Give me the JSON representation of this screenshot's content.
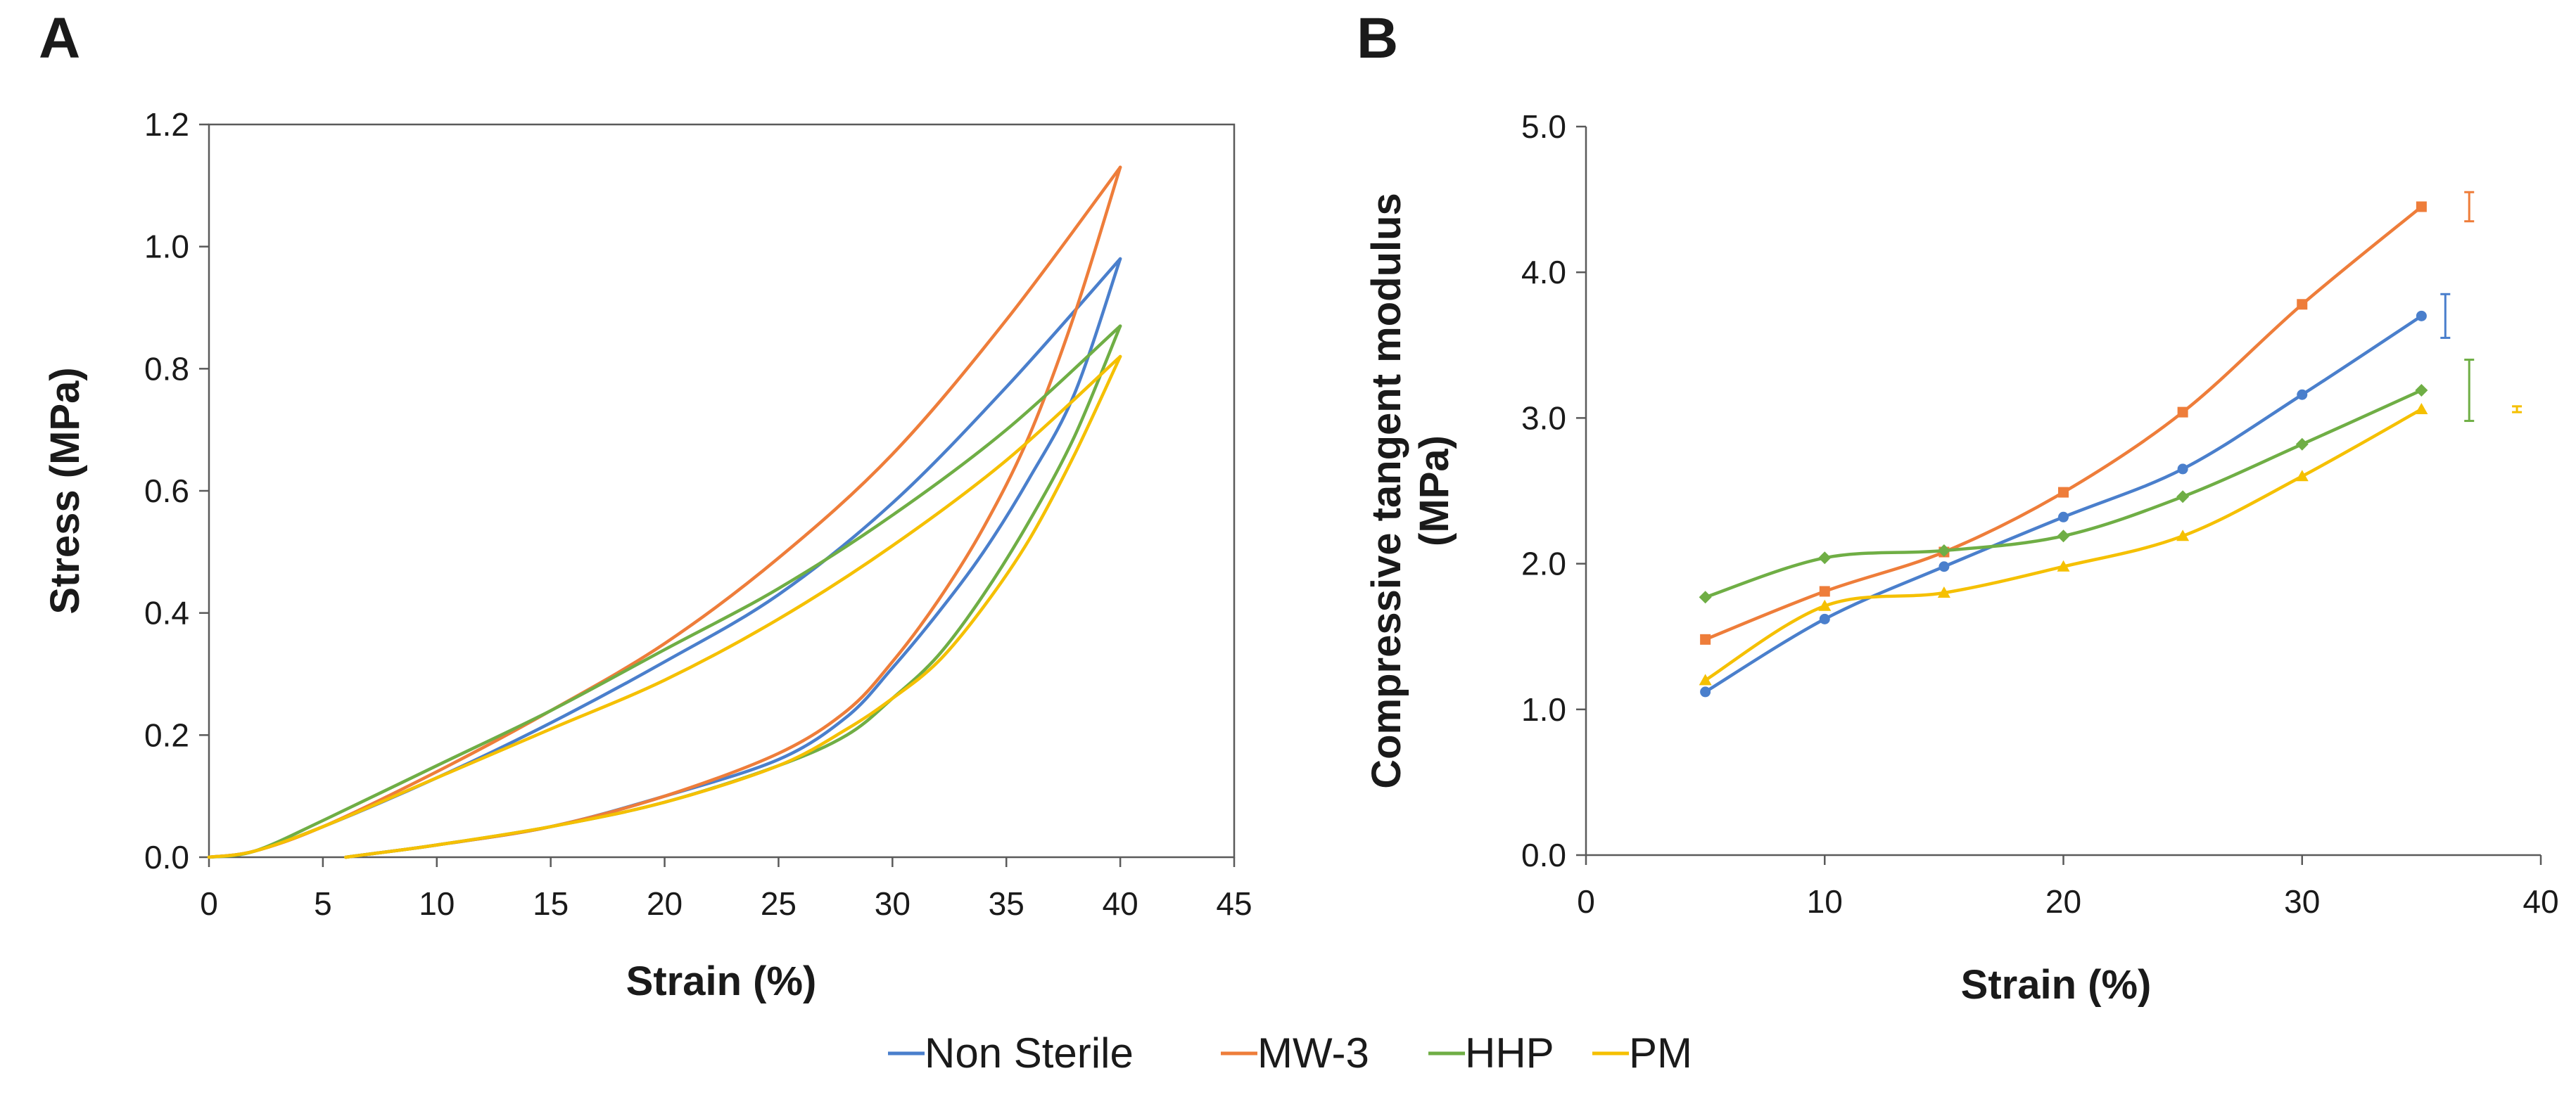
{
  "legend": [
    {
      "name": "Non Sterile",
      "color": "#4a7fcc"
    },
    {
      "name": "MW-3",
      "color": "#ee7d3a"
    },
    {
      "name": "HHP",
      "color": "#6fae45"
    },
    {
      "name": "PM",
      "color": "#f5c000"
    }
  ],
  "chart_data": [
    {
      "panel": "A",
      "type": "line",
      "title": "",
      "xlabel": "Strain (%)",
      "ylabel": "Stress (MPa)",
      "xlim": [
        0,
        45
      ],
      "ylim": [
        0,
        1.2
      ],
      "xticks": [
        0,
        5,
        10,
        15,
        20,
        25,
        30,
        35,
        40,
        45
      ],
      "xtick_labels": [
        "0",
        "5",
        "10",
        "15",
        "20",
        "25",
        "30",
        "35",
        "40",
        "45"
      ],
      "yticks": [
        0,
        0.2,
        0.4,
        0.6,
        0.8,
        1.0,
        1.2
      ],
      "ytick_labels": [
        "0.0",
        "0.2",
        "0.4",
        "0.6",
        "0.8",
        "1.0",
        "1.2"
      ],
      "grid": false,
      "series": [
        {
          "name": "Non Sterile",
          "color": "#4a7fcc",
          "loading": [
            [
              0,
              0
            ],
            [
              2,
              0.01
            ],
            [
              5,
              0.05
            ],
            [
              10,
              0.13
            ],
            [
              15,
              0.22
            ],
            [
              20,
              0.32
            ],
            [
              25,
              0.43
            ],
            [
              30,
              0.58
            ],
            [
              35,
              0.77
            ],
            [
              40,
              0.98
            ]
          ],
          "unloading": [
            [
              40,
              0.98
            ],
            [
              38,
              0.76
            ],
            [
              36,
              0.62
            ],
            [
              34,
              0.5
            ],
            [
              32,
              0.4
            ],
            [
              30,
              0.31
            ],
            [
              28,
              0.23
            ],
            [
              25,
              0.16
            ],
            [
              20,
              0.1
            ],
            [
              15,
              0.05
            ],
            [
              10,
              0.02
            ],
            [
              7,
              0.005
            ],
            [
              6,
              0
            ]
          ]
        },
        {
          "name": "MW-3",
          "color": "#ee7d3a",
          "loading": [
            [
              0,
              0
            ],
            [
              2,
              0.01
            ],
            [
              5,
              0.05
            ],
            [
              10,
              0.14
            ],
            [
              15,
              0.24
            ],
            [
              20,
              0.35
            ],
            [
              25,
              0.49
            ],
            [
              30,
              0.66
            ],
            [
              35,
              0.88
            ],
            [
              40,
              1.13
            ]
          ],
          "unloading": [
            [
              40,
              1.13
            ],
            [
              38,
              0.89
            ],
            [
              36,
              0.69
            ],
            [
              34,
              0.54
            ],
            [
              32,
              0.42
            ],
            [
              30,
              0.32
            ],
            [
              28,
              0.24
            ],
            [
              25,
              0.17
            ],
            [
              20,
              0.1
            ],
            [
              15,
              0.05
            ],
            [
              10,
              0.02
            ],
            [
              7,
              0.005
            ],
            [
              6,
              0
            ]
          ]
        },
        {
          "name": "HHP",
          "color": "#6fae45",
          "loading": [
            [
              0,
              0
            ],
            [
              2,
              0.01
            ],
            [
              5,
              0.06
            ],
            [
              10,
              0.15
            ],
            [
              15,
              0.24
            ],
            [
              20,
              0.34
            ],
            [
              25,
              0.44
            ],
            [
              30,
              0.56
            ],
            [
              35,
              0.7
            ],
            [
              40,
              0.87
            ]
          ],
          "unloading": [
            [
              40,
              0.87
            ],
            [
              38,
              0.69
            ],
            [
              36,
              0.55
            ],
            [
              34,
              0.43
            ],
            [
              32,
              0.33
            ],
            [
              30,
              0.26
            ],
            [
              28,
              0.2
            ],
            [
              25,
              0.15
            ],
            [
              20,
              0.09
            ],
            [
              15,
              0.05
            ],
            [
              10,
              0.02
            ],
            [
              7,
              0.005
            ],
            [
              6,
              0
            ]
          ]
        },
        {
          "name": "PM",
          "color": "#f5c000",
          "loading": [
            [
              0,
              0
            ],
            [
              2,
              0.01
            ],
            [
              5,
              0.05
            ],
            [
              10,
              0.13
            ],
            [
              15,
              0.21
            ],
            [
              20,
              0.29
            ],
            [
              25,
              0.39
            ],
            [
              30,
              0.51
            ],
            [
              35,
              0.65
            ],
            [
              40,
              0.82
            ]
          ],
          "unloading": [
            [
              40,
              0.82
            ],
            [
              38,
              0.66
            ],
            [
              36,
              0.52
            ],
            [
              34,
              0.41
            ],
            [
              32,
              0.32
            ],
            [
              30,
              0.26
            ],
            [
              28,
              0.21
            ],
            [
              25,
              0.15
            ],
            [
              20,
              0.09
            ],
            [
              15,
              0.05
            ],
            [
              10,
              0.02
            ],
            [
              7,
              0.005
            ],
            [
              6,
              0
            ]
          ]
        }
      ]
    },
    {
      "panel": "B",
      "type": "line",
      "title": "",
      "xlabel": "Strain (%)",
      "ylabel_lines": [
        "Compressive tangent modulus",
        "(MPa)"
      ],
      "xlim": [
        0,
        40
      ],
      "ylim": [
        0,
        5
      ],
      "xticks": [
        0,
        10,
        20,
        30,
        40
      ],
      "xtick_labels": [
        "0",
        "10",
        "20",
        "30",
        "40"
      ],
      "yticks": [
        0,
        1,
        2,
        3,
        4,
        5
      ],
      "ytick_labels": [
        "0.0",
        "1.0",
        "2.0",
        "3.0",
        "4.0",
        "5.0"
      ],
      "grid": false,
      "x": [
        5,
        10,
        15,
        20,
        25,
        30,
        35
      ],
      "series": [
        {
          "name": "Non Sterile",
          "color": "#4a7fcc",
          "marker": "circle",
          "values": [
            1.12,
            1.62,
            1.98,
            2.32,
            2.65,
            3.16,
            3.7
          ],
          "error_bar": {
            "x": 36,
            "low": 3.55,
            "high": 3.85
          }
        },
        {
          "name": "MW-3",
          "color": "#ee7d3a",
          "marker": "square",
          "values": [
            1.48,
            1.81,
            2.08,
            2.49,
            3.04,
            3.78,
            4.45
          ],
          "error_bar": {
            "x": 37,
            "low": 4.35,
            "high": 4.55
          }
        },
        {
          "name": "HHP",
          "color": "#6fae45",
          "marker": "diamond",
          "values": [
            1.77,
            2.04,
            2.09,
            2.19,
            2.46,
            2.82,
            3.19
          ],
          "error_bar": {
            "x": 37,
            "low": 2.98,
            "high": 3.4
          }
        },
        {
          "name": "PM",
          "color": "#f5c000",
          "marker": "triangle",
          "values": [
            1.2,
            1.71,
            1.8,
            1.98,
            2.19,
            2.6,
            3.06
          ],
          "error_bar": {
            "x": 39,
            "low": 3.04,
            "high": 3.08
          }
        }
      ]
    }
  ]
}
